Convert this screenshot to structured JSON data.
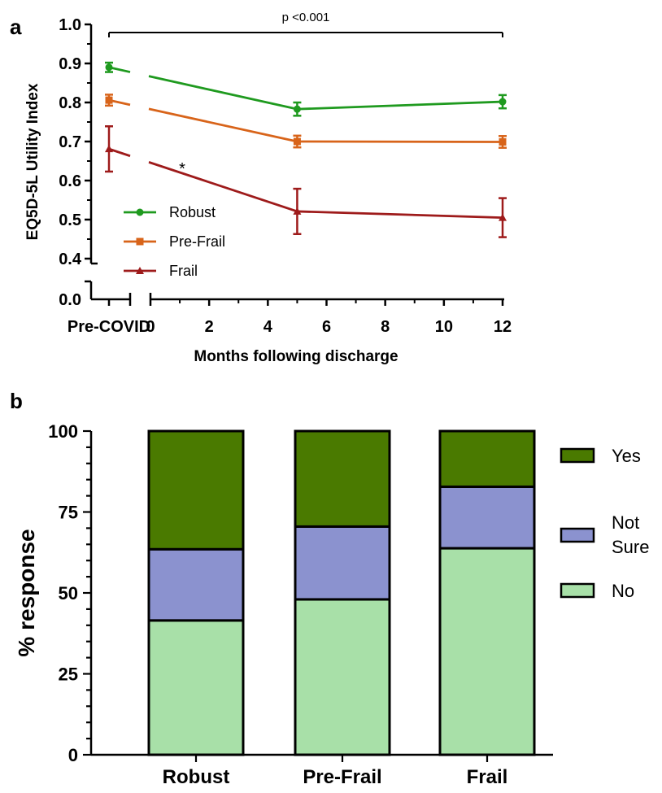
{
  "chart_data": [
    {
      "panel": "a",
      "type": "line",
      "ylabel": "EQ5D-5L Utility Index",
      "xlabel": "Months following discharge",
      "ylim": [
        0.0,
        1.0
      ],
      "y_axis_break": [
        0.0,
        0.4
      ],
      "yticks": [
        0.0,
        0.4,
        0.5,
        0.6,
        0.7,
        0.8,
        0.9,
        1.0
      ],
      "ytick_labels": [
        "0.0",
        "0.4",
        "0.5",
        "0.6",
        "0.7",
        "0.8",
        "0.9",
        "1.0"
      ],
      "x_categories": [
        "Pre-COVID"
      ],
      "xticks": [
        0,
        2,
        4,
        6,
        8,
        10,
        12
      ],
      "xtick_labels": [
        "0",
        "2",
        "4",
        "6",
        "8",
        "10",
        "12"
      ],
      "annotations": [
        {
          "text": "p <0.001",
          "from_x": "Pre-COVID",
          "to_x": 12
        },
        {
          "text": "*",
          "x": 1,
          "between_series": "Frail"
        }
      ],
      "legend_position": "lower-left",
      "series": [
        {
          "name": "Robust",
          "color": "#1f9a1f",
          "marker": "circle",
          "points": [
            {
              "x": "Pre-COVID",
              "y": 0.89,
              "err": 0.012
            },
            {
              "x": 5,
              "y": 0.783,
              "err": 0.017
            },
            {
              "x": 12,
              "y": 0.802,
              "err": 0.017
            }
          ]
        },
        {
          "name": "Pre-Frail",
          "color": "#d8641a",
          "marker": "square",
          "points": [
            {
              "x": "Pre-COVID",
              "y": 0.806,
              "err": 0.014
            },
            {
              "x": 5,
              "y": 0.7,
              "err": 0.015
            },
            {
              "x": 12,
              "y": 0.699,
              "err": 0.015
            }
          ]
        },
        {
          "name": "Frail",
          "color": "#9e1b1b",
          "marker": "triangle",
          "points": [
            {
              "x": "Pre-COVID",
              "y": 0.681,
              "err": 0.058
            },
            {
              "x": 5,
              "y": 0.521,
              "err": 0.058
            },
            {
              "x": 12,
              "y": 0.505,
              "err": 0.05
            }
          ]
        }
      ]
    },
    {
      "panel": "b",
      "type": "bar",
      "stacked": true,
      "ylabel": "% response",
      "ylim": [
        0,
        100
      ],
      "yticks": [
        0,
        25,
        50,
        75,
        100
      ],
      "ytick_labels": [
        "0",
        "25",
        "50",
        "75",
        "100"
      ],
      "categories": [
        "Robust",
        "Pre-Frail",
        "Frail"
      ],
      "legend_position": "right",
      "series": [
        {
          "name": "No",
          "color": "#a8e0a8",
          "values": [
            41.5,
            48,
            63.8
          ]
        },
        {
          "name": "Not Sure",
          "color": "#8b92cf",
          "values": [
            22,
            22.5,
            19
          ]
        },
        {
          "name": "Yes",
          "color": "#4a7a00",
          "values": [
            36.5,
            29.5,
            17.2
          ]
        }
      ],
      "legend_entries": [
        {
          "label_lines": [
            "Yes"
          ],
          "color": "#4a7a00"
        },
        {
          "label_lines": [
            "Not",
            "Sure"
          ],
          "color": "#8b92cf"
        },
        {
          "label_lines": [
            "No"
          ],
          "color": "#a8e0a8"
        }
      ]
    }
  ]
}
